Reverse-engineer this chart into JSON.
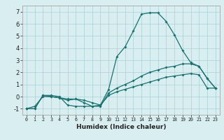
{
  "xlabel": "Humidex (Indice chaleur)",
  "x_values": [
    0,
    1,
    2,
    3,
    4,
    5,
    6,
    7,
    8,
    9,
    10,
    11,
    12,
    13,
    14,
    15,
    16,
    17,
    18,
    19,
    20,
    21,
    22,
    23
  ],
  "line1": [
    -1.0,
    -1.0,
    0.1,
    0.1,
    0.0,
    -0.7,
    -0.8,
    -0.8,
    -0.8,
    -0.7,
    0.6,
    3.3,
    4.1,
    5.4,
    6.8,
    6.9,
    6.9,
    6.2,
    5.1,
    3.8,
    2.8,
    2.5,
    1.5,
    0.7
  ],
  "line2": [
    -1.0,
    -1.0,
    0.1,
    0.0,
    -0.1,
    -0.3,
    -0.2,
    -0.5,
    -0.8,
    -0.8,
    0.3,
    0.7,
    1.0,
    1.3,
    1.7,
    2.0,
    2.2,
    2.4,
    2.5,
    2.7,
    2.7,
    2.5,
    1.5,
    0.7
  ],
  "line3": [
    -1.0,
    -0.8,
    0.0,
    0.0,
    -0.1,
    -0.2,
    -0.2,
    -0.3,
    -0.5,
    -0.7,
    0.1,
    0.4,
    0.6,
    0.8,
    1.0,
    1.2,
    1.4,
    1.6,
    1.7,
    1.8,
    1.9,
    1.8,
    0.7,
    0.7
  ],
  "line_color": "#1a7070",
  "bg_color": "#d8eef0",
  "grid_color": "#aacfd4",
  "ylim": [
    -1.5,
    7.5
  ],
  "xlim": [
    -0.5,
    23.5
  ],
  "yticks": [
    -1,
    0,
    1,
    2,
    3,
    4,
    5,
    6,
    7
  ],
  "xticks": [
    0,
    1,
    2,
    3,
    4,
    5,
    6,
    7,
    8,
    9,
    10,
    11,
    12,
    13,
    14,
    15,
    16,
    17,
    18,
    19,
    20,
    21,
    22,
    23
  ],
  "xlabel_fontsize": 6.5,
  "tick_fontsize_x": 4.8,
  "tick_fontsize_y": 6.0
}
